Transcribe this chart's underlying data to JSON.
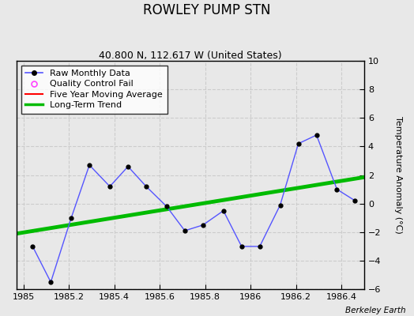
{
  "title": "ROWLEY PUMP STN",
  "subtitle": "40.800 N, 112.617 W (United States)",
  "ylabel": "Temperature Anomaly (°C)",
  "credit": "Berkeley Earth",
  "xlim": [
    1984.97,
    1986.5
  ],
  "ylim": [
    -6,
    10
  ],
  "yticks": [
    -6,
    -4,
    -2,
    0,
    2,
    4,
    6,
    8,
    10
  ],
  "xticks": [
    1985.0,
    1985.2,
    1985.4,
    1985.6,
    1985.8,
    1986.0,
    1986.2,
    1986.4
  ],
  "fig_bg_color": "#e8e8e8",
  "plot_bg_color": "#e8e8e8",
  "raw_x": [
    1985.04,
    1985.12,
    1985.21,
    1985.29,
    1985.38,
    1985.46,
    1985.54,
    1985.63,
    1985.71,
    1985.79,
    1985.88,
    1985.96,
    1986.04,
    1986.13,
    1986.21,
    1986.29,
    1986.38,
    1986.46
  ],
  "raw_y": [
    -3.0,
    -5.5,
    -1.0,
    2.7,
    1.2,
    2.6,
    1.2,
    -0.2,
    -1.9,
    -1.5,
    -0.5,
    -3.0,
    -3.0,
    -0.1,
    4.2,
    4.8,
    1.0,
    0.2
  ],
  "trend_x": [
    1984.97,
    1986.52
  ],
  "trend_y": [
    -2.1,
    1.9
  ],
  "raw_line_color": "#5555ff",
  "raw_marker_color": "#000000",
  "trend_color": "#00bb00",
  "moving_avg_color": "#ff0000",
  "qc_color": "#ff44ff",
  "grid_color": "#cccccc",
  "title_fontsize": 12,
  "subtitle_fontsize": 9,
  "tick_fontsize": 8,
  "ylabel_fontsize": 8,
  "legend_fontsize": 8
}
